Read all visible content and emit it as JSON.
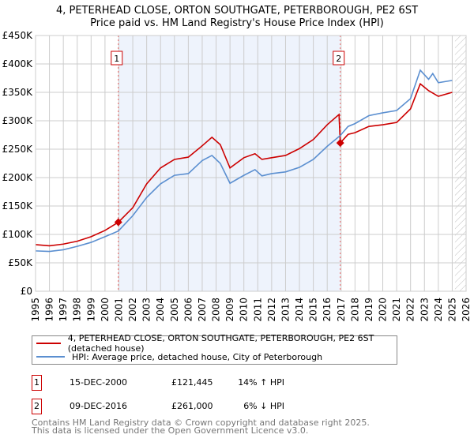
{
  "title": "4, PETERHEAD CLOSE, ORTON SOUTHGATE, PETERBOROUGH, PE2 6ST",
  "subtitle": "Price paid vs. HM Land Registry's House Price Index (HPI)",
  "colors": {
    "property": "#cc0000",
    "hpi": "#5b8fd0",
    "shade": "#eef3fc"
  },
  "legend": {
    "property": "4, PETERHEAD CLOSE, ORTON SOUTHGATE, PETERBOROUGH, PE2 6ST (detached house)",
    "hpi": "HPI: Average price, detached house, City of Peterborough"
  },
  "sales": [
    {
      "num": "1",
      "date": "15-DEC-2000",
      "price": "£121,445",
      "hpi_diff": "14% ↑ HPI"
    },
    {
      "num": "2",
      "date": "09-DEC-2016",
      "price": "£261,000",
      "hpi_diff": "6% ↓ HPI"
    }
  ],
  "footer": {
    "line1": "Contains HM Land Registry data © Crown copyright and database right 2025.",
    "line2": "This data is licensed under the Open Government Licence v3.0."
  },
  "chart_data": {
    "type": "line",
    "xlim": [
      1995,
      2026
    ],
    "ylim": [
      0,
      450000
    ],
    "x_ticks": [
      "1995",
      "1996",
      "1997",
      "1998",
      "1999",
      "2000",
      "2001",
      "2002",
      "2003",
      "2004",
      "2005",
      "2006",
      "2007",
      "2008",
      "2009",
      "2010",
      "2011",
      "2012",
      "2013",
      "2014",
      "2015",
      "2016",
      "2017",
      "2018",
      "2019",
      "2020",
      "2021",
      "2022",
      "2023",
      "2024",
      "2025",
      "2026"
    ],
    "y_ticks": [
      {
        "v": 0,
        "label": "£0"
      },
      {
        "v": 50000,
        "label": "£50K"
      },
      {
        "v": 100000,
        "label": "£100K"
      },
      {
        "v": 150000,
        "label": "£150K"
      },
      {
        "v": 200000,
        "label": "£200K"
      },
      {
        "v": 250000,
        "label": "£250K"
      },
      {
        "v": 300000,
        "label": "£300K"
      },
      {
        "v": 350000,
        "label": "£350K"
      },
      {
        "v": 400000,
        "label": "£400K"
      },
      {
        "v": 450000,
        "label": "£450K"
      }
    ],
    "grid": true,
    "sale_markers": [
      {
        "label": "1",
        "x": 2000.96,
        "y": 121445
      },
      {
        "label": "2",
        "x": 2016.94,
        "y": 261000
      }
    ],
    "forecast_hatch_from": 2025.2,
    "series": [
      {
        "name": "property",
        "points": [
          [
            1995,
            82000
          ],
          [
            1996,
            80000
          ],
          [
            1997,
            83000
          ],
          [
            1998,
            88000
          ],
          [
            1999,
            96000
          ],
          [
            2000,
            107000
          ],
          [
            2000.96,
            121445
          ],
          [
            2002,
            147000
          ],
          [
            2003,
            189000
          ],
          [
            2004,
            217000
          ],
          [
            2005,
            232000
          ],
          [
            2006,
            236000
          ],
          [
            2007,
            256000
          ],
          [
            2007.7,
            271000
          ],
          [
            2008.3,
            258000
          ],
          [
            2009,
            217000
          ],
          [
            2010,
            235000
          ],
          [
            2010.8,
            242000
          ],
          [
            2011.3,
            232000
          ],
          [
            2012,
            235000
          ],
          [
            2013,
            239000
          ],
          [
            2014,
            251000
          ],
          [
            2015,
            267000
          ],
          [
            2016,
            293000
          ],
          [
            2016.85,
            311000
          ],
          [
            2016.94,
            261000
          ],
          [
            2017.5,
            276000
          ],
          [
            2018,
            279000
          ],
          [
            2019,
            290000
          ],
          [
            2020,
            293000
          ],
          [
            2021,
            297000
          ],
          [
            2022,
            321000
          ],
          [
            2022.7,
            365000
          ],
          [
            2023.3,
            353000
          ],
          [
            2024,
            343000
          ],
          [
            2025,
            350000
          ]
        ]
      },
      {
        "name": "hpi",
        "points": [
          [
            1995,
            71000
          ],
          [
            1996,
            70000
          ],
          [
            1997,
            73000
          ],
          [
            1998,
            79000
          ],
          [
            1999,
            86000
          ],
          [
            2000,
            96000
          ],
          [
            2000.96,
            106000
          ],
          [
            2002,
            133000
          ],
          [
            2003,
            165000
          ],
          [
            2004,
            189000
          ],
          [
            2005,
            204000
          ],
          [
            2006,
            207000
          ],
          [
            2007,
            230000
          ],
          [
            2007.7,
            239000
          ],
          [
            2008.3,
            225000
          ],
          [
            2009,
            190000
          ],
          [
            2010,
            204000
          ],
          [
            2010.8,
            214000
          ],
          [
            2011.3,
            203000
          ],
          [
            2012,
            207000
          ],
          [
            2013,
            210000
          ],
          [
            2014,
            218000
          ],
          [
            2015,
            232000
          ],
          [
            2016,
            255000
          ],
          [
            2016.94,
            274000
          ],
          [
            2017.5,
            290000
          ],
          [
            2018,
            295000
          ],
          [
            2019,
            309000
          ],
          [
            2020,
            314000
          ],
          [
            2021,
            318000
          ],
          [
            2022,
            339000
          ],
          [
            2022.7,
            389000
          ],
          [
            2023.3,
            373000
          ],
          [
            2023.6,
            383000
          ],
          [
            2024,
            367000
          ],
          [
            2025,
            371000
          ]
        ]
      }
    ]
  }
}
